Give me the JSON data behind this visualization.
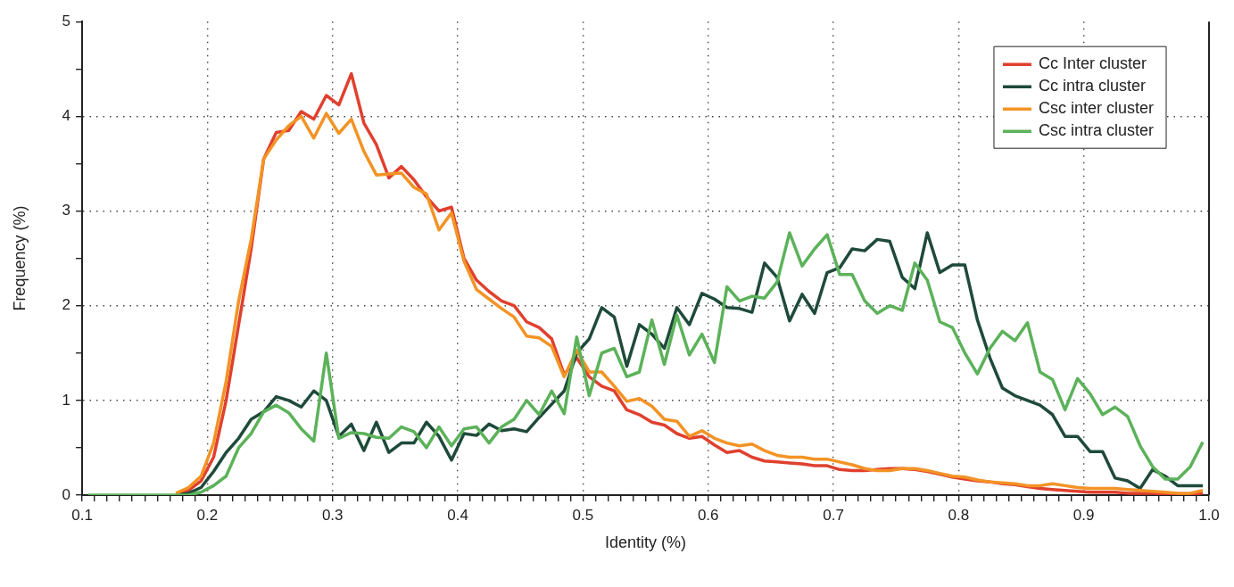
{
  "chart_data": {
    "type": "line",
    "xlabel": "Identity (%)",
    "ylabel": "Frequency (%)",
    "x": [
      0.105,
      0.115,
      0.125,
      0.135,
      0.145,
      0.155,
      0.165,
      0.175,
      0.185,
      0.195,
      0.205,
      0.215,
      0.225,
      0.235,
      0.245,
      0.255,
      0.265,
      0.275,
      0.285,
      0.295,
      0.305,
      0.315,
      0.325,
      0.335,
      0.345,
      0.355,
      0.365,
      0.375,
      0.385,
      0.395,
      0.405,
      0.415,
      0.425,
      0.435,
      0.445,
      0.455,
      0.465,
      0.475,
      0.485,
      0.495,
      0.505,
      0.515,
      0.525,
      0.535,
      0.545,
      0.555,
      0.565,
      0.575,
      0.585,
      0.595,
      0.605,
      0.615,
      0.625,
      0.635,
      0.645,
      0.655,
      0.665,
      0.675,
      0.685,
      0.695,
      0.705,
      0.715,
      0.725,
      0.735,
      0.745,
      0.755,
      0.765,
      0.775,
      0.785,
      0.795,
      0.805,
      0.815,
      0.825,
      0.835,
      0.845,
      0.855,
      0.865,
      0.875,
      0.885,
      0.895,
      0.905,
      0.915,
      0.925,
      0.935,
      0.945,
      0.955,
      0.965,
      0.975,
      0.985,
      0.995
    ],
    "series": [
      {
        "name": "Cc Inter cluster",
        "color": "#e0402e",
        "values": [
          null,
          null,
          null,
          null,
          null,
          null,
          null,
          0.01,
          0.05,
          0.15,
          0.4,
          1.0,
          1.8,
          2.6,
          3.55,
          3.83,
          3.85,
          4.05,
          3.97,
          4.22,
          4.12,
          4.45,
          3.93,
          3.7,
          3.35,
          3.47,
          3.33,
          3.15,
          3.0,
          3.04,
          2.5,
          2.27,
          2.15,
          2.05,
          2.0,
          1.83,
          1.77,
          1.65,
          1.27,
          1.45,
          1.25,
          1.15,
          1.1,
          0.9,
          0.85,
          0.77,
          0.74,
          0.65,
          0.6,
          0.62,
          0.53,
          0.45,
          0.47,
          0.4,
          0.36,
          0.35,
          0.34,
          0.33,
          0.31,
          0.31,
          0.27,
          0.26,
          0.26,
          0.27,
          0.28,
          0.28,
          0.27,
          0.25,
          0.22,
          0.19,
          0.17,
          0.15,
          0.14,
          0.12,
          0.11,
          0.09,
          0.07,
          0.06,
          0.05,
          0.04,
          0.03,
          0.03,
          0.03,
          0.02,
          0.02,
          0.02,
          0.01,
          0.01,
          0.01,
          0.02
        ]
      },
      {
        "name": "Cc intra cluster",
        "color": "#1f4a3a",
        "values": [
          null,
          null,
          null,
          null,
          null,
          null,
          null,
          0,
          0.02,
          0.08,
          0.25,
          0.45,
          0.6,
          0.8,
          0.88,
          1.04,
          1.0,
          0.93,
          1.1,
          1.0,
          0.62,
          0.75,
          0.47,
          0.77,
          0.45,
          0.55,
          0.55,
          0.77,
          0.62,
          0.37,
          0.65,
          0.63,
          0.75,
          0.68,
          0.7,
          0.67,
          0.82,
          0.96,
          1.1,
          1.5,
          1.65,
          1.98,
          1.88,
          1.36,
          1.8,
          1.7,
          1.55,
          1.98,
          1.8,
          2.13,
          2.07,
          1.98,
          1.97,
          1.93,
          2.45,
          2.3,
          1.84,
          2.12,
          1.92,
          2.35,
          2.4,
          2.6,
          2.58,
          2.7,
          2.68,
          2.3,
          2.18,
          2.77,
          2.35,
          2.43,
          2.43,
          1.85,
          1.45,
          1.13,
          1.05,
          1.0,
          0.95,
          0.85,
          0.62,
          0.62,
          0.46,
          0.46,
          0.18,
          0.15,
          0.07,
          0.27,
          0.2,
          0.1,
          0.1,
          0.1
        ]
      },
      {
        "name": "Csc inter cluster",
        "color": "#f39325",
        "values": [
          null,
          null,
          null,
          null,
          null,
          null,
          null,
          0.02,
          0.08,
          0.2,
          0.55,
          1.2,
          2.05,
          2.7,
          3.55,
          3.75,
          3.9,
          4.0,
          3.77,
          4.03,
          3.82,
          3.97,
          3.63,
          3.38,
          3.39,
          3.4,
          3.25,
          3.18,
          2.8,
          2.98,
          2.47,
          2.17,
          2.07,
          1.97,
          1.88,
          1.68,
          1.66,
          1.57,
          1.25,
          1.53,
          1.3,
          1.3,
          1.15,
          0.99,
          1.02,
          0.94,
          0.8,
          0.78,
          0.62,
          0.68,
          0.6,
          0.55,
          0.52,
          0.54,
          0.47,
          0.42,
          0.4,
          0.4,
          0.38,
          0.38,
          0.35,
          0.32,
          0.28,
          0.26,
          0.26,
          0.28,
          0.28,
          0.26,
          0.23,
          0.2,
          0.19,
          0.16,
          0.14,
          0.13,
          0.12,
          0.1,
          0.1,
          0.12,
          0.1,
          0.08,
          0.07,
          0.07,
          0.07,
          0.06,
          0.05,
          0.04,
          0.03,
          0.02,
          0.02,
          0.05
        ]
      },
      {
        "name": "Csc intra cluster",
        "color": "#5cb25a",
        "values": [
          0,
          0,
          0,
          0,
          0,
          0,
          0,
          0,
          0,
          0.03,
          0.1,
          0.2,
          0.5,
          0.65,
          0.88,
          0.95,
          0.87,
          0.7,
          0.57,
          1.5,
          0.6,
          0.66,
          0.65,
          0.61,
          0.6,
          0.72,
          0.67,
          0.5,
          0.72,
          0.52,
          0.7,
          0.72,
          0.55,
          0.72,
          0.8,
          1.0,
          0.85,
          1.1,
          0.86,
          1.67,
          1.05,
          1.5,
          1.55,
          1.25,
          1.3,
          1.85,
          1.38,
          1.9,
          1.48,
          1.7,
          1.4,
          2.2,
          2.05,
          2.1,
          2.08,
          2.25,
          2.77,
          2.42,
          2.6,
          2.75,
          2.33,
          2.33,
          2.05,
          1.92,
          2.0,
          1.95,
          2.45,
          2.27,
          1.83,
          1.77,
          1.5,
          1.28,
          1.55,
          1.73,
          1.63,
          1.82,
          1.3,
          1.22,
          0.9,
          1.23,
          1.07,
          0.85,
          0.93,
          0.83,
          0.52,
          0.3,
          0.17,
          0.17,
          0.3,
          0.56
        ]
      }
    ],
    "xlim": [
      0.1,
      1.0
    ],
    "xticks": [
      0.1,
      {
        "value": 0.11,
        "label": null
      },
      {
        "value": 0.12,
        "label": null
      },
      {
        "value": 0.13,
        "label": null
      },
      {
        "value": 0.14,
        "label": null
      },
      {
        "value": 0.15,
        "label": null
      },
      {
        "value": 0.16,
        "label": null
      },
      {
        "value": 0.17,
        "label": null
      },
      {
        "value": 0.18,
        "label": null
      },
      {
        "value": 0.19,
        "label": null
      },
      0.2,
      {
        "value": 0.21,
        "label": null
      },
      {
        "value": 0.22,
        "label": null
      },
      {
        "value": 0.23,
        "label": null
      },
      {
        "value": 0.24,
        "label": null
      },
      {
        "value": 0.25,
        "label": null
      },
      {
        "value": 0.26,
        "label": null
      },
      {
        "value": 0.27,
        "label": null
      },
      {
        "value": 0.28,
        "label": null
      },
      {
        "value": 0.29,
        "label": null
      },
      0.3,
      {
        "value": 0.31,
        "label": null
      },
      {
        "value": 0.32,
        "label": null
      },
      {
        "value": 0.33,
        "label": null
      },
      {
        "value": 0.34,
        "label": null
      },
      {
        "value": 0.35,
        "label": null
      },
      {
        "value": 0.36,
        "label": null
      },
      {
        "value": 0.37,
        "label": null
      },
      {
        "value": 0.38,
        "label": null
      },
      {
        "value": 0.39,
        "label": null
      },
      0.4,
      {
        "value": 0.41,
        "label": null
      },
      {
        "value": 0.42,
        "label": null
      },
      {
        "value": 0.43,
        "label": null
      },
      {
        "value": 0.44,
        "label": null
      },
      {
        "value": 0.45,
        "label": null
      },
      {
        "value": 0.46,
        "label": null
      },
      {
        "value": 0.47,
        "label": null
      },
      {
        "value": 0.48,
        "label": null
      },
      {
        "value": 0.49,
        "label": null
      },
      0.5,
      {
        "value": 0.51,
        "label": null
      },
      {
        "value": 0.52,
        "label": null
      },
      {
        "value": 0.53,
        "label": null
      },
      {
        "value": 0.54,
        "label": null
      },
      {
        "value": 0.55,
        "label": null
      },
      {
        "value": 0.56,
        "label": null
      },
      {
        "value": 0.57,
        "label": null
      },
      {
        "value": 0.58,
        "label": null
      },
      {
        "value": 0.59,
        "label": null
      },
      0.6,
      {
        "value": 0.61,
        "label": null
      },
      {
        "value": 0.62,
        "label": null
      },
      {
        "value": 0.63,
        "label": null
      },
      {
        "value": 0.64,
        "label": null
      },
      {
        "value": 0.65,
        "label": null
      },
      {
        "value": 0.66,
        "label": null
      },
      {
        "value": 0.67,
        "label": null
      },
      {
        "value": 0.68,
        "label": null
      },
      {
        "value": 0.69,
        "label": null
      },
      0.7,
      {
        "value": 0.71,
        "label": null
      },
      {
        "value": 0.72,
        "label": null
      },
      {
        "value": 0.73,
        "label": null
      },
      {
        "value": 0.74,
        "label": null
      },
      {
        "value": 0.75,
        "label": null
      },
      {
        "value": 0.76,
        "label": null
      },
      {
        "value": 0.77,
        "label": null
      },
      {
        "value": 0.78,
        "label": null
      },
      {
        "value": 0.79,
        "label": null
      },
      0.8,
      {
        "value": 0.81,
        "label": null
      },
      {
        "value": 0.82,
        "label": null
      },
      {
        "value": 0.83,
        "label": null
      },
      {
        "value": 0.84,
        "label": null
      },
      {
        "value": 0.85,
        "label": null
      },
      {
        "value": 0.86,
        "label": null
      },
      {
        "value": 0.87,
        "label": null
      },
      {
        "value": 0.88,
        "label": null
      },
      {
        "value": 0.89,
        "label": null
      },
      0.9,
      {
        "value": 0.91,
        "label": null
      },
      {
        "value": 0.92,
        "label": null
      },
      {
        "value": 0.93,
        "label": null
      },
      {
        "value": 0.94,
        "label": null
      },
      {
        "value": 0.95,
        "label": null
      },
      {
        "value": 0.96,
        "label": null
      },
      {
        "value": 0.97,
        "label": null
      },
      {
        "value": 0.98,
        "label": null
      },
      {
        "value": 0.99,
        "label": null
      },
      {
        "value": 1.0,
        "label": "1.0"
      }
    ],
    "ylim": [
      0,
      5
    ],
    "yticks": [
      0,
      {
        "value": 0.5,
        "label": null
      },
      1,
      {
        "value": 1.5,
        "label": null
      },
      2,
      {
        "value": 2.5,
        "label": null
      },
      3,
      {
        "value": 3.5,
        "label": null
      },
      4,
      {
        "value": 4.5,
        "label": null
      },
      5
    ],
    "grid": true,
    "legend": "top right",
    "marker": "none",
    "line_style": "solid"
  }
}
